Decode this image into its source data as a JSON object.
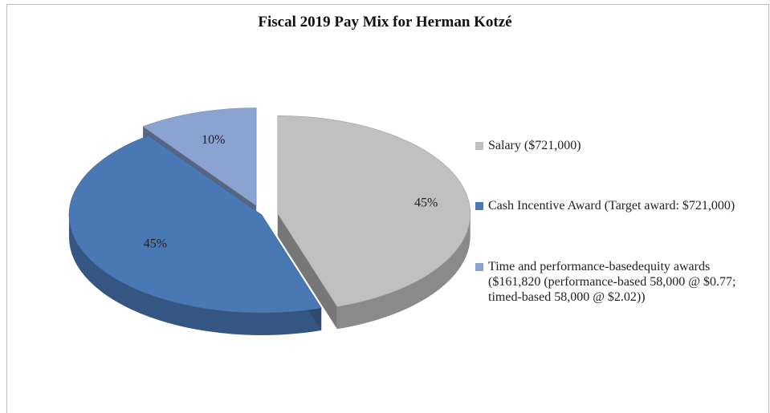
{
  "chart_data": {
    "type": "pie",
    "title": "Fiscal 2019 Pay Mix for Herman  Kotzé",
    "slices": [
      {
        "name": "Salary ($721,000)",
        "value": 45,
        "label": "45%",
        "color": "#c0c0c0"
      },
      {
        "name": "Cash Incentive Award (Target award: $721,000)",
        "value": 45,
        "label": "45%",
        "color": "#4a78b4"
      },
      {
        "name": "Time and performance-basedequity awards",
        "value": 10,
        "label": "10%",
        "color": "#8aa3d0",
        "name_lines": [
          "($161,820 (performance-based 58,000 @ $0.77;",
          "timed-based 58,000 @ $2.02))"
        ]
      }
    ],
    "legend_position": "right"
  }
}
